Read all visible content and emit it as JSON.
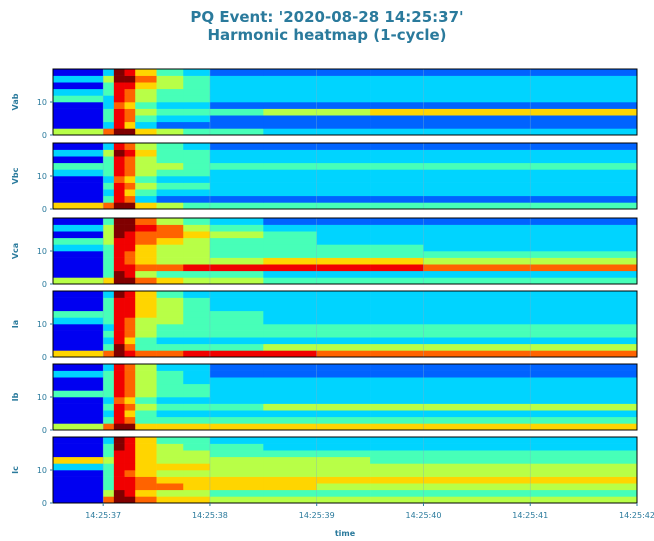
{
  "chart_data": {
    "type": "heatmap",
    "title": "PQ Event: '2020-08-28 14:25:37'",
    "subtitle": "Harmonic heatmap (1-cycle)",
    "xlabel": "time",
    "colormap": "jet",
    "zlim": [
      0,
      9
    ],
    "grid": true,
    "xlim": [
      51936.53,
      51942
    ],
    "xticks": [
      {
        "value": 51937,
        "label": "14:25:37"
      },
      {
        "value": 51938,
        "label": "14:25:38"
      },
      {
        "value": 51939,
        "label": "14:25:39"
      },
      {
        "value": 51940,
        "label": "14:25:40"
      },
      {
        "value": 51941,
        "label": "14:25:41"
      },
      {
        "value": 51942,
        "label": "14:25:42"
      }
    ],
    "ylim": [
      0,
      20
    ],
    "yticks": [
      0,
      10
    ],
    "x": [
      51936.53,
      51937.0,
      51937.1,
      51937.2,
      51937.3,
      51937.5,
      51937.75,
      51938,
      51938.5,
      51939,
      51939.5,
      51940,
      51941,
      51942
    ],
    "y": [
      0,
      2,
      4,
      6,
      8,
      10,
      12,
      14,
      16,
      18,
      20
    ],
    "panels": [
      {
        "ylabel": "Vab",
        "z": [
          [
            5,
            7,
            9,
            9,
            6,
            5,
            4,
            4,
            3,
            3,
            3,
            3,
            3
          ],
          [
            1,
            3,
            8,
            6,
            3,
            2,
            2,
            2,
            2,
            2,
            2,
            2,
            2
          ],
          [
            1,
            4,
            8,
            7,
            4,
            3,
            3,
            2,
            2,
            2,
            2,
            2,
            2
          ],
          [
            1,
            4,
            8,
            7,
            5,
            4,
            4,
            4,
            5,
            5,
            6,
            6,
            6
          ],
          [
            1,
            3,
            7,
            6,
            4,
            3,
            3,
            2,
            2,
            2,
            2,
            2,
            2
          ],
          [
            4,
            3,
            8,
            7,
            5,
            4,
            4,
            3,
            3,
            3,
            3,
            3,
            3
          ],
          [
            3,
            4,
            8,
            7,
            5,
            4,
            4,
            3,
            3,
            3,
            3,
            3,
            3
          ],
          [
            1,
            4,
            8,
            8,
            6,
            5,
            4,
            3,
            3,
            3,
            3,
            3,
            3
          ],
          [
            3,
            5,
            9,
            9,
            7,
            5,
            4,
            3,
            3,
            3,
            3,
            3,
            3
          ],
          [
            1,
            3,
            9,
            8,
            6,
            4,
            3,
            2,
            2,
            2,
            2,
            2,
            2
          ]
        ]
      },
      {
        "ylabel": "Vbc",
        "z": [
          [
            6,
            7,
            9,
            9,
            6,
            5,
            4,
            4,
            4,
            4,
            4,
            4,
            4
          ],
          [
            1,
            4,
            8,
            7,
            3,
            2,
            2,
            2,
            2,
            2,
            2,
            2,
            2
          ],
          [
            1,
            3,
            8,
            6,
            4,
            3,
            3,
            3,
            3,
            3,
            3,
            3,
            3
          ],
          [
            1,
            4,
            8,
            7,
            5,
            4,
            4,
            3,
            3,
            3,
            3,
            3,
            3
          ],
          [
            1,
            3,
            7,
            6,
            4,
            3,
            3,
            3,
            3,
            3,
            3,
            3,
            3
          ],
          [
            3,
            4,
            8,
            7,
            5,
            4,
            4,
            3,
            3,
            3,
            3,
            3,
            3
          ],
          [
            4,
            4,
            8,
            7,
            5,
            5,
            4,
            4,
            4,
            4,
            4,
            4,
            4
          ],
          [
            1,
            4,
            8,
            7,
            5,
            4,
            4,
            3,
            3,
            3,
            3,
            3,
            3
          ],
          [
            3,
            5,
            9,
            8,
            6,
            4,
            4,
            3,
            3,
            3,
            3,
            3,
            3
          ],
          [
            1,
            3,
            8,
            7,
            5,
            4,
            3,
            2,
            2,
            2,
            2,
            2,
            2
          ]
        ]
      },
      {
        "ylabel": "Vca",
        "z": [
          [
            5,
            6,
            9,
            9,
            7,
            6,
            5,
            5,
            4,
            4,
            4,
            4,
            4
          ],
          [
            1,
            4,
            9,
            8,
            5,
            4,
            4,
            4,
            3,
            3,
            3,
            3,
            3
          ],
          [
            1,
            4,
            8,
            8,
            7,
            7,
            8,
            8,
            8,
            8,
            8,
            7,
            7
          ],
          [
            1,
            4,
            8,
            7,
            6,
            5,
            5,
            5,
            6,
            6,
            6,
            5,
            5
          ],
          [
            1,
            4,
            8,
            7,
            6,
            5,
            5,
            4,
            4,
            4,
            4,
            4,
            4
          ],
          [
            3,
            4,
            8,
            8,
            6,
            5,
            5,
            4,
            4,
            4,
            4,
            3,
            3
          ],
          [
            4,
            5,
            8,
            8,
            7,
            6,
            5,
            4,
            4,
            3,
            3,
            3,
            3
          ],
          [
            1,
            5,
            9,
            8,
            7,
            7,
            6,
            5,
            4,
            3,
            3,
            3,
            3
          ],
          [
            3,
            5,
            9,
            9,
            8,
            7,
            5,
            4,
            3,
            3,
            3,
            3,
            3
          ],
          [
            1,
            4,
            9,
            9,
            7,
            5,
            4,
            3,
            2,
            2,
            2,
            2,
            2
          ]
        ]
      },
      {
        "ylabel": "Ia",
        "z": [
          [
            6,
            7,
            9,
            8,
            7,
            7,
            8,
            8,
            8,
            7,
            7,
            7,
            7
          ],
          [
            1,
            4,
            9,
            7,
            4,
            4,
            4,
            4,
            5,
            5,
            5,
            5,
            5
          ],
          [
            1,
            3,
            8,
            6,
            4,
            3,
            3,
            3,
            3,
            3,
            3,
            3,
            3
          ],
          [
            1,
            4,
            8,
            7,
            5,
            4,
            4,
            4,
            4,
            4,
            4,
            4,
            4
          ],
          [
            1,
            3,
            8,
            7,
            5,
            4,
            4,
            4,
            4,
            4,
            4,
            4,
            4
          ],
          [
            3,
            4,
            8,
            7,
            5,
            5,
            4,
            4,
            3,
            3,
            3,
            3,
            3
          ],
          [
            4,
            4,
            8,
            8,
            6,
            5,
            4,
            4,
            3,
            3,
            3,
            3,
            3
          ],
          [
            1,
            4,
            8,
            8,
            6,
            5,
            4,
            3,
            3,
            3,
            3,
            3,
            3
          ],
          [
            1,
            4,
            8,
            8,
            6,
            5,
            4,
            3,
            3,
            3,
            3,
            3,
            3
          ],
          [
            1,
            3,
            9,
            8,
            6,
            4,
            3,
            3,
            3,
            3,
            3,
            3,
            3
          ]
        ]
      },
      {
        "ylabel": "Ib",
        "z": [
          [
            5,
            7,
            9,
            9,
            6,
            6,
            6,
            6,
            6,
            6,
            6,
            6,
            6
          ],
          [
            1,
            4,
            8,
            7,
            4,
            4,
            4,
            4,
            4,
            4,
            4,
            4,
            4
          ],
          [
            1,
            3,
            8,
            6,
            4,
            3,
            3,
            3,
            3,
            3,
            3,
            3,
            3
          ],
          [
            1,
            4,
            8,
            7,
            5,
            4,
            4,
            4,
            5,
            5,
            5,
            5,
            5
          ],
          [
            1,
            3,
            7,
            6,
            4,
            3,
            3,
            3,
            3,
            3,
            3,
            3,
            3
          ],
          [
            4,
            4,
            8,
            7,
            5,
            4,
            4,
            3,
            3,
            3,
            3,
            3,
            3
          ],
          [
            1,
            4,
            8,
            7,
            5,
            4,
            4,
            3,
            3,
            3,
            3,
            3,
            3
          ],
          [
            1,
            4,
            8,
            7,
            5,
            4,
            3,
            3,
            3,
            3,
            3,
            3,
            3
          ],
          [
            3,
            4,
            8,
            7,
            5,
            4,
            3,
            2,
            2,
            2,
            2,
            2,
            2
          ],
          [
            1,
            3,
            8,
            7,
            5,
            3,
            3,
            2,
            2,
            2,
            2,
            2,
            2
          ]
        ]
      },
      {
        "ylabel": "Ic",
        "z": [
          [
            1,
            7,
            9,
            9,
            7,
            6,
            6,
            5,
            5,
            5,
            5,
            5,
            5
          ],
          [
            1,
            5,
            9,
            8,
            6,
            5,
            5,
            4,
            4,
            4,
            4,
            4,
            4
          ],
          [
            1,
            4,
            8,
            8,
            7,
            7,
            6,
            6,
            6,
            5,
            5,
            5,
            5
          ],
          [
            1,
            4,
            8,
            8,
            7,
            6,
            6,
            6,
            6,
            6,
            6,
            6,
            6
          ],
          [
            1,
            4,
            8,
            7,
            6,
            5,
            5,
            5,
            5,
            5,
            5,
            5,
            5
          ],
          [
            3,
            4,
            8,
            8,
            6,
            6,
            6,
            5,
            5,
            5,
            5,
            5,
            5
          ],
          [
            6,
            5,
            8,
            8,
            6,
            5,
            5,
            5,
            5,
            5,
            4,
            4,
            4
          ],
          [
            1,
            4,
            8,
            8,
            6,
            5,
            5,
            4,
            4,
            4,
            4,
            4,
            4
          ],
          [
            1,
            4,
            9,
            8,
            6,
            5,
            4,
            4,
            3,
            3,
            3,
            3,
            3
          ],
          [
            1,
            3,
            9,
            8,
            6,
            4,
            4,
            3,
            3,
            3,
            3,
            3,
            3
          ]
        ]
      }
    ]
  }
}
